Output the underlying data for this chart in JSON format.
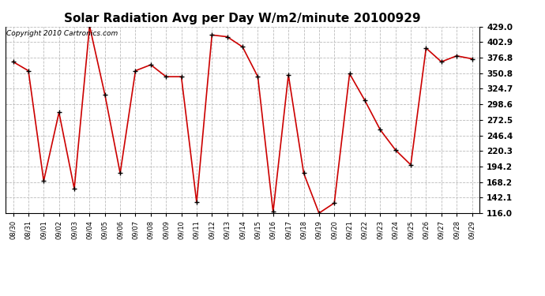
{
  "title": "Solar Radiation Avg per Day W/m2/minute 20100929",
  "copyright": "Copyright 2010 Cartronics.com",
  "dates": [
    "08/30",
    "08/31",
    "09/01",
    "09/02",
    "09/03",
    "09/04",
    "09/05",
    "09/06",
    "09/07",
    "09/08",
    "09/09",
    "09/10",
    "09/11",
    "09/12",
    "09/13",
    "09/14",
    "09/15",
    "09/16",
    "09/17",
    "09/18",
    "09/19",
    "09/20",
    "09/21",
    "09/22",
    "09/23",
    "09/24",
    "09/25",
    "09/26",
    "09/27",
    "09/28",
    "09/29"
  ],
  "values": [
    370,
    355,
    170,
    285,
    157,
    430,
    315,
    183,
    355,
    365,
    345,
    345,
    134,
    415,
    412,
    395,
    345,
    118,
    348,
    183,
    116,
    133,
    350,
    305,
    256,
    222,
    197,
    393,
    370,
    380,
    375
  ],
  "line_color": "#cc0000",
  "marker_color": "#000000",
  "bg_color": "#ffffff",
  "grid_color": "#bbbbbb",
  "ylim_min": 116.0,
  "ylim_max": 429.0,
  "ytick_values": [
    116.0,
    142.1,
    168.2,
    194.2,
    220.3,
    246.4,
    272.5,
    298.6,
    324.7,
    350.8,
    376.8,
    402.9,
    429.0
  ],
  "title_fontsize": 11,
  "copyright_fontsize": 6.5,
  "tick_fontsize": 7.5,
  "xtick_fontsize": 6
}
